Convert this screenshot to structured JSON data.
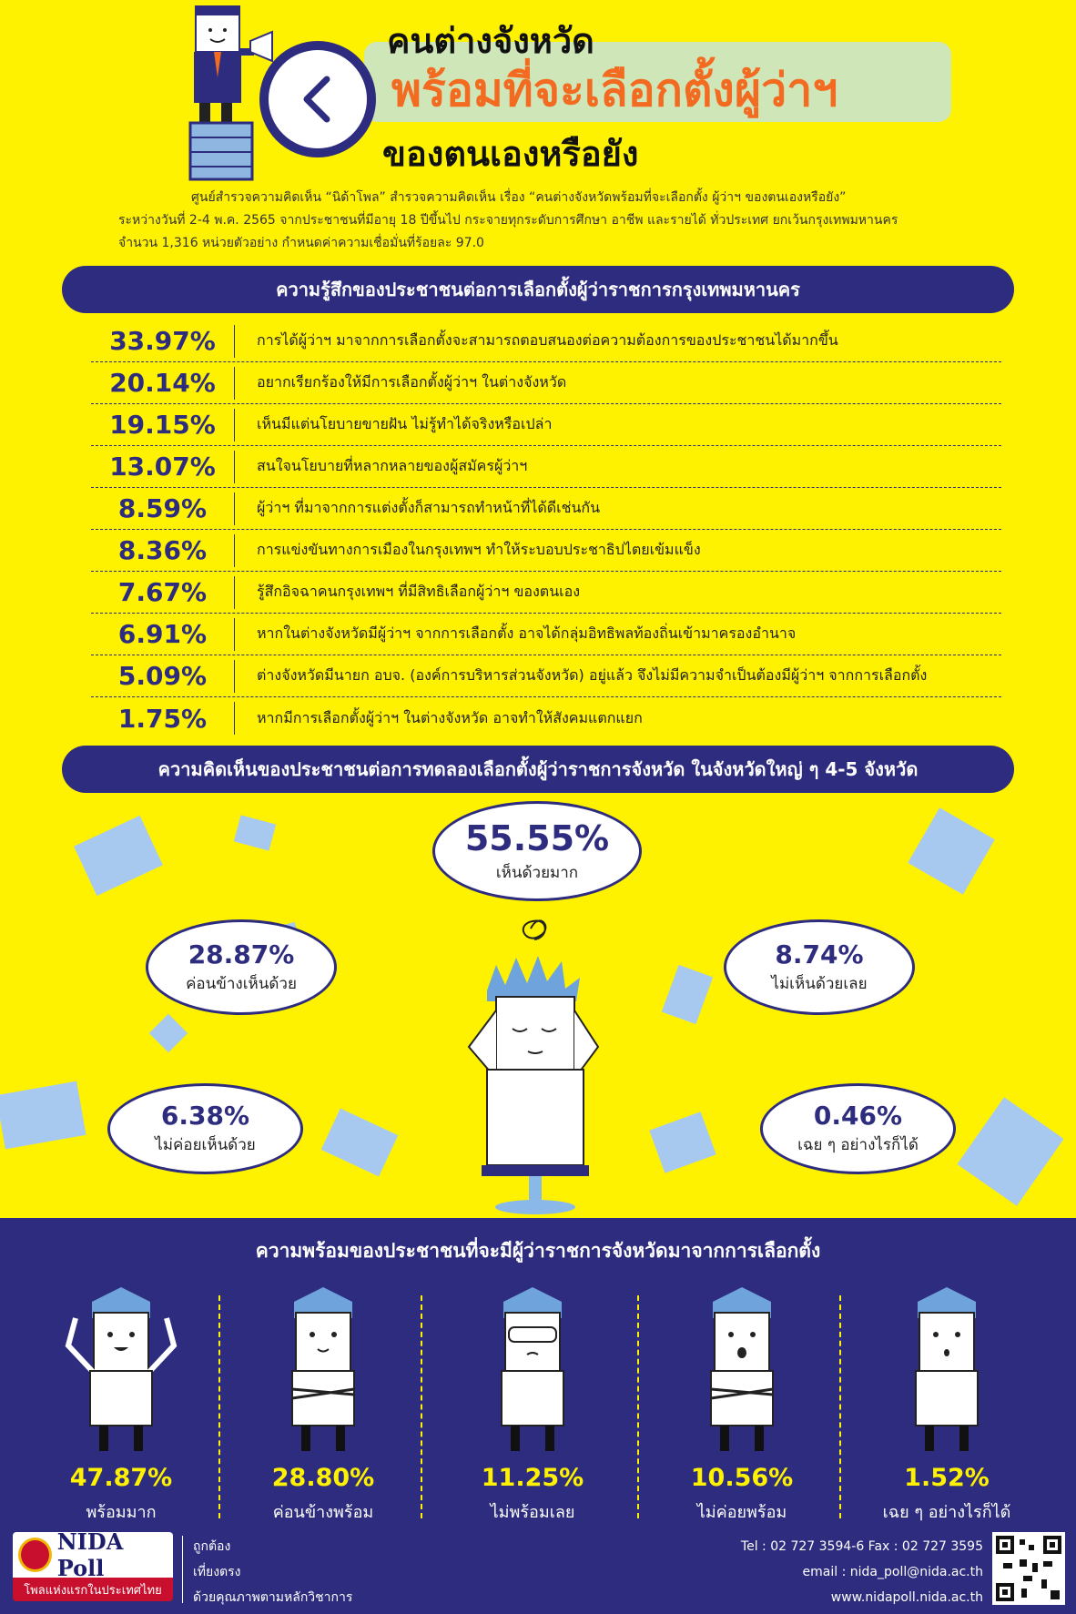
{
  "header": {
    "title_line1": "คนต่างจังหวัด",
    "title_line2": "พร้อมที่จะเลือกตั้งผู้ว่าฯ",
    "title_line3": "ของตนเองหรือยัง",
    "intro_line1": "ศูนย์สำรวจความคิดเห็น “นิด้าโพล” สำรวจความคิดเห็น เรื่อง “คนต่างจังหวัดพร้อมที่จะเลือกตั้ง ผู้ว่าฯ ของตนเองหรือยัง”",
    "intro_line2": "ระหว่างวันที่ 2-4 พ.ค. 2565 จากประชาชนที่มีอายุ 18 ปีขึ้นไป กระจายทุกระดับการศึกษา อาชีพ และรายได้ ทั่วประเทศ ยกเว้นกรุงเทพมหานคร",
    "intro_line3": "จำนวน 1,316 หน่วยตัวอย่าง กำหนดค่าความเชื่อมั่นที่ร้อยละ 97.0"
  },
  "section1": {
    "title": "ความรู้สึกของประชาชนต่อการเลือกตั้งผู้ว่าราชการกรุงเทพมหานคร",
    "rows": [
      {
        "pct": "33.97%",
        "text": "การได้ผู้ว่าฯ มาจากการเลือกตั้งจะสามารถตอบสนองต่อความต้องการของประชาชนได้มากขึ้น"
      },
      {
        "pct": "20.14%",
        "text": "อยากเรียกร้องให้มีการเลือกตั้งผู้ว่าฯ ในต่างจังหวัด"
      },
      {
        "pct": "19.15%",
        "text": "เห็นมีแต่นโยบายขายฝัน ไม่รู้ทำได้จริงหรือเปล่า"
      },
      {
        "pct": "13.07%",
        "text": "สนใจนโยบายที่หลากหลายของผู้สมัครผู้ว่าฯ"
      },
      {
        "pct": "8.59%",
        "text": "ผู้ว่าฯ ที่มาจากการแต่งตั้งก็สามารถทำหน้าที่ได้ดีเช่นกัน"
      },
      {
        "pct": "8.36%",
        "text": "การแข่งขันทางการเมืองในกรุงเทพฯ ทำให้ระบอบประชาธิปไตยเข้มแข็ง"
      },
      {
        "pct": "7.67%",
        "text": "รู้สึกอิจฉาคนกรุงเทพฯ ที่มีสิทธิเลือกผู้ว่าฯ ของตนเอง"
      },
      {
        "pct": "6.91%",
        "text": "หากในต่างจังหวัดมีผู้ว่าฯ จากการเลือกตั้ง อาจได้กลุ่มอิทธิพลท้องถิ่นเข้ามาครองอำนาจ"
      },
      {
        "pct": "5.09%",
        "text": "ต่างจังหวัดมีนายก อบจ. (องค์การบริหารส่วนจังหวัด) อยู่แล้ว จึงไม่มีความจำเป็นต้องมีผู้ว่าฯ จากการเลือกตั้ง"
      },
      {
        "pct": "1.75%",
        "text": "หากมีการเลือกตั้งผู้ว่าฯ ในต่างจังหวัด อาจทำให้สังคมแตกแยก"
      }
    ]
  },
  "section2": {
    "title": "ความคิดเห็นของประชาชนต่อการทดลองเลือกตั้งผู้ว่าราชการจังหวัด ในจังหวัดใหญ่ ๆ 4-5 จังหวัด",
    "bubbles": [
      {
        "pct": "55.55%",
        "label": "เห็นด้วยมาก"
      },
      {
        "pct": "28.87%",
        "label": "ค่อนข้างเห็นด้วย"
      },
      {
        "pct": "8.74%",
        "label": "ไม่เห็นด้วยเลย"
      },
      {
        "pct": "6.38%",
        "label": "ไม่ค่อยเห็นด้วย"
      },
      {
        "pct": "0.46%",
        "label": "เฉย ๆ อย่างไรก็ได้"
      }
    ]
  },
  "section3": {
    "title": "ความพร้อมของประชาชนที่จะมีผู้ว่าราชการจังหวัดมาจากการเลือกตั้ง",
    "items": [
      {
        "pct": "47.87%",
        "label": "พร้อมมาก"
      },
      {
        "pct": "28.80%",
        "label": "ค่อนข้างพร้อม"
      },
      {
        "pct": "11.25%",
        "label": "ไม่พร้อมเลย"
      },
      {
        "pct": "10.56%",
        "label": "ไม่ค่อยพร้อม"
      },
      {
        "pct": "1.52%",
        "label": "เฉย ๆ อย่างไรก็ได้"
      }
    ]
  },
  "footer": {
    "logo_name": "NIDA Poll",
    "logo_tagline": "โพลแห่งแรกในประเทศไทย",
    "motto1": "ถูกต้อง",
    "motto2": "เที่ยงตรง",
    "motto3": "ด้วยคุณภาพตามหลักวิชาการ",
    "tel": "Tel : 02 727 3594-6 Fax : 02 727 3595",
    "email": "email : nida_poll@nida.ac.th",
    "web": "www.nidapoll.nida.ac.th"
  },
  "colors": {
    "navy": "#2e2c7e",
    "yellow": "#fff200",
    "orange": "#f26b21",
    "green_box": "#cfe6b8",
    "paper_blue": "#a7c9f0",
    "red": "#c8102e"
  }
}
